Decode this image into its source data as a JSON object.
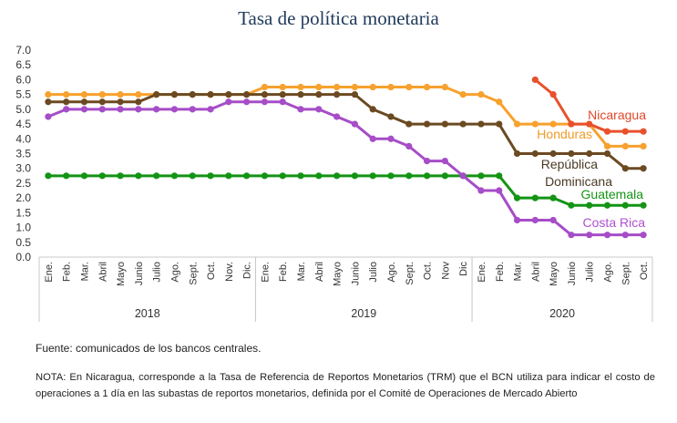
{
  "chart_data": {
    "type": "line",
    "title": "Tasa de política monetaria",
    "ylim": [
      0,
      7
    ],
    "y_ticks": [
      "0.0",
      "0.5",
      "1.0",
      "1.5",
      "2.0",
      "2.5",
      "3.0",
      "3.5",
      "4.0",
      "4.5",
      "5.0",
      "5.5",
      "6.0",
      "6.5",
      "7.0"
    ],
    "grid": false,
    "months": [
      "Ene.",
      "Feb.",
      "Mar.",
      "Abril",
      "Mayo",
      "Junio",
      "Julio",
      "Ago.",
      "Sept.",
      "Oct.",
      "Nov.",
      "Dic.",
      "Ene.",
      "Feb.",
      "Mar.",
      "Abril",
      "Mayo",
      "Junio",
      "Julio",
      "Ago.",
      "Sept.",
      "Oct.",
      "Nov",
      "Dic",
      "Ene.",
      "Feb.",
      "Mar.",
      "Abril",
      "Mayo",
      "Junio",
      "Julio",
      "Ago.",
      "Sept.",
      "Oct."
    ],
    "years": [
      {
        "label": "2018",
        "start": 0,
        "end": 11
      },
      {
        "label": "2019",
        "start": 12,
        "end": 23
      },
      {
        "label": "2020",
        "start": 24,
        "end": 33
      }
    ],
    "series": [
      {
        "name": "Guatemala",
        "color": "#149414",
        "label_color": "#149414",
        "values": [
          2.75,
          2.75,
          2.75,
          2.75,
          2.75,
          2.75,
          2.75,
          2.75,
          2.75,
          2.75,
          2.75,
          2.75,
          2.75,
          2.75,
          2.75,
          2.75,
          2.75,
          2.75,
          2.75,
          2.75,
          2.75,
          2.75,
          2.75,
          2.75,
          2.75,
          2.75,
          2.0,
          2.0,
          2.0,
          1.75,
          1.75,
          1.75,
          1.75,
          1.75
        ]
      },
      {
        "name": "Costa Rica",
        "color": "#a64dc7",
        "label_color": "#b04fd0",
        "values": [
          4.75,
          5.0,
          5.0,
          5.0,
          5.0,
          5.0,
          5.0,
          5.0,
          5.0,
          5.0,
          5.25,
          5.25,
          5.25,
          5.25,
          5.0,
          5.0,
          4.75,
          4.5,
          4.0,
          4.0,
          3.75,
          3.25,
          3.25,
          2.75,
          2.25,
          2.25,
          1.25,
          1.25,
          1.25,
          0.75,
          0.75,
          0.75,
          0.75,
          0.75
        ]
      },
      {
        "name": "Honduras",
        "color": "#f7a12e",
        "label_color": "#f09a28",
        "values": [
          5.5,
          5.5,
          5.5,
          5.5,
          5.5,
          5.5,
          5.5,
          5.5,
          5.5,
          5.5,
          5.5,
          5.5,
          5.75,
          5.75,
          5.75,
          5.75,
          5.75,
          5.75,
          5.75,
          5.75,
          5.75,
          5.75,
          5.75,
          5.5,
          5.5,
          5.25,
          4.5,
          4.5,
          4.5,
          4.5,
          4.5,
          3.75,
          3.75,
          3.75
        ]
      },
      {
        "name": "República Dominicana",
        "label_line1": "República",
        "label_line2": "Dominicana",
        "color": "#6b4a22",
        "label_color": "#4a3a26",
        "values": [
          5.25,
          5.25,
          5.25,
          5.25,
          5.25,
          5.25,
          5.5,
          5.5,
          5.5,
          5.5,
          5.5,
          5.5,
          5.5,
          5.5,
          5.5,
          5.5,
          5.5,
          5.5,
          5.0,
          4.75,
          4.5,
          4.5,
          4.5,
          4.5,
          4.5,
          4.5,
          3.5,
          3.5,
          3.5,
          3.5,
          3.5,
          3.5,
          3.0,
          3.0
        ]
      },
      {
        "name": "Nicaragua",
        "color": "#e8512c",
        "label_color": "#e0482a",
        "values": [
          null,
          null,
          null,
          null,
          null,
          null,
          null,
          null,
          null,
          null,
          null,
          null,
          null,
          null,
          null,
          null,
          null,
          null,
          null,
          null,
          null,
          null,
          null,
          null,
          null,
          null,
          null,
          6.0,
          5.5,
          4.5,
          4.5,
          4.25,
          4.25,
          4.25
        ]
      }
    ]
  },
  "source": "Fuente: comunicados de los bancos centrales.",
  "note": "NOTA: En Nicaragua, corresponde a la Tasa de Referencia de Reportos Monetarios (TRM) que el BCN utiliza para indicar el costo de operaciones a 1 día en las subastas de reportos monetarios, definida por el Comité de Operaciones de Mercado Abierto"
}
